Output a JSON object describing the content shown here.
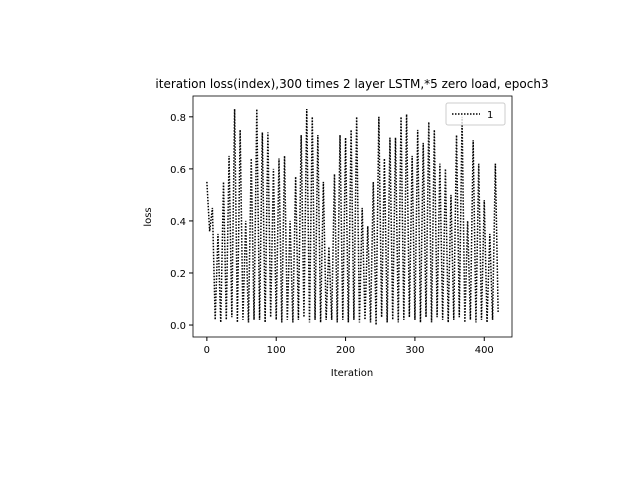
{
  "chart_data": {
    "type": "line",
    "title": "iteration loss(index),300 times 2 layer LSTM,*5 zero load, epoch3",
    "xlabel": "Iteration",
    "ylabel": "loss",
    "x": [
      0,
      4,
      8,
      12,
      16,
      20,
      24,
      28,
      32,
      36,
      40,
      44,
      48,
      52,
      56,
      60,
      64,
      68,
      72,
      76,
      80,
      84,
      88,
      92,
      96,
      100,
      104,
      108,
      112,
      116,
      120,
      124,
      128,
      132,
      136,
      140,
      144,
      148,
      152,
      156,
      160,
      164,
      168,
      172,
      176,
      180,
      184,
      188,
      192,
      196,
      200,
      204,
      208,
      212,
      216,
      220,
      224,
      228,
      232,
      236,
      240,
      244,
      248,
      252,
      256,
      260,
      264,
      268,
      272,
      276,
      280,
      284,
      288,
      292,
      296,
      300,
      304,
      308,
      312,
      316,
      320,
      324,
      328,
      332,
      336,
      340,
      344,
      348,
      352,
      356,
      360,
      364,
      368,
      372,
      376,
      380,
      384,
      388,
      392,
      396,
      400,
      404,
      408,
      412,
      416,
      420
    ],
    "series": [
      {
        "name": "1",
        "color": "#000000",
        "values": [
          0.55,
          0.36,
          0.45,
          0.02,
          0.35,
          0.01,
          0.55,
          0.02,
          0.65,
          0.03,
          0.83,
          0.01,
          0.75,
          0.02,
          0.4,
          0.01,
          0.64,
          0.02,
          0.83,
          0.02,
          0.74,
          0.01,
          0.74,
          0.03,
          0.6,
          0.02,
          0.64,
          0.01,
          0.65,
          0.02,
          0.4,
          0.01,
          0.57,
          0.02,
          0.73,
          0.03,
          0.83,
          0.01,
          0.8,
          0.02,
          0.73,
          0.01,
          0.55,
          0.02,
          0.3,
          0.02,
          0.58,
          0.01,
          0.73,
          0.02,
          0.72,
          0.01,
          0.75,
          0.02,
          0.8,
          0.01,
          0.45,
          0.02,
          0.38,
          0.01,
          0.55,
          0.0,
          0.8,
          0.03,
          0.64,
          0.01,
          0.72,
          0.02,
          0.72,
          0.01,
          0.8,
          0.02,
          0.81,
          0.03,
          0.65,
          0.02,
          0.75,
          0.01,
          0.7,
          0.03,
          0.78,
          0.01,
          0.75,
          0.03,
          0.62,
          0.02,
          0.6,
          0.01,
          0.5,
          0.02,
          0.73,
          0.03,
          0.8,
          0.01,
          0.4,
          0.02,
          0.71,
          0.01,
          0.62,
          0.02,
          0.48,
          0.01,
          0.35,
          0.02,
          0.62,
          0.05
        ]
      }
    ],
    "xlim": [
      -20,
      440
    ],
    "ylim": [
      -0.046,
      0.88
    ],
    "xticks": [
      0,
      100,
      200,
      300,
      400
    ],
    "yticks": [
      {
        "value": 0,
        "label": "0.0"
      },
      0.2,
      0.4,
      0.6,
      0.8
    ],
    "legend": "upper right",
    "line_style": "dotted"
  }
}
